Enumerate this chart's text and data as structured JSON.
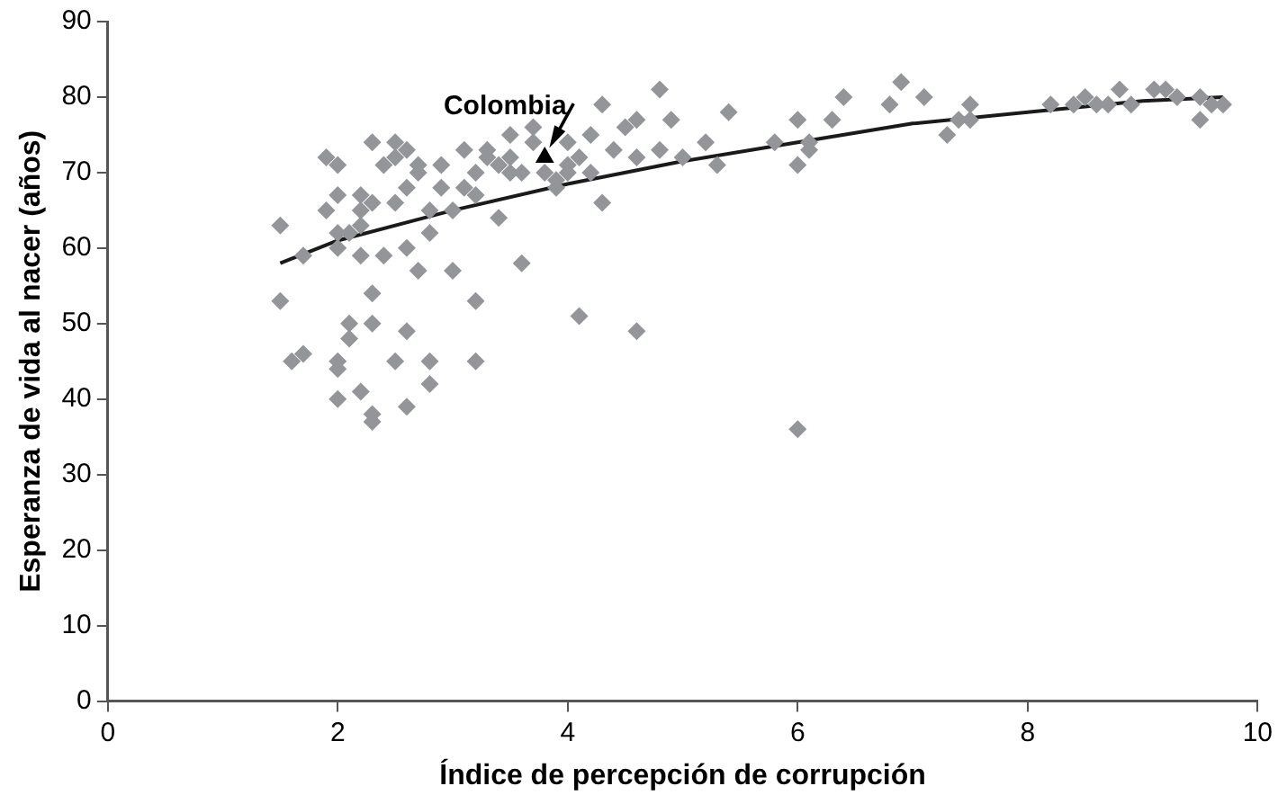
{
  "chart_data": {
    "type": "scatter",
    "xlabel": "Índice de percepción de corrupción",
    "ylabel": "Esperanza de vida al nacer (años)",
    "xlim": [
      0,
      10
    ],
    "xticks": [
      0,
      2,
      4,
      6,
      8,
      10
    ],
    "ylim": [
      0,
      90
    ],
    "yticks": [
      0,
      10,
      20,
      30,
      40,
      50,
      60,
      70,
      80,
      90
    ],
    "grid": false,
    "legend": false,
    "annotations": [
      {
        "text": "Colombia",
        "x": 3.8,
        "y": 72
      }
    ],
    "series": [
      {
        "marker": "diamond",
        "color": "#939598",
        "x": [
          1.5,
          1.5,
          1.6,
          1.7,
          1.7,
          1.9,
          1.9,
          2.0,
          2.0,
          2.0,
          2.0,
          2.0,
          2.0,
          2.0,
          2.1,
          2.1,
          2.1,
          2.2,
          2.2,
          2.2,
          2.2,
          2.2,
          2.3,
          2.3,
          2.3,
          2.3,
          2.3,
          2.3,
          2.4,
          2.4,
          2.5,
          2.5,
          2.5,
          2.5,
          2.6,
          2.6,
          2.6,
          2.6,
          2.6,
          2.7,
          2.7,
          2.7,
          2.8,
          2.8,
          2.8,
          2.8,
          2.9,
          2.9,
          3.0,
          3.0,
          3.1,
          3.1,
          3.2,
          3.2,
          3.2,
          3.2,
          3.3,
          3.3,
          3.4,
          3.4,
          3.5,
          3.5,
          3.5,
          3.6,
          3.6,
          3.7,
          3.7,
          3.8,
          3.9,
          3.9,
          4.0,
          4.0,
          4.0,
          4.1,
          4.1,
          4.2,
          4.2,
          4.3,
          4.3,
          4.4,
          4.5,
          4.6,
          4.6,
          4.6,
          4.8,
          4.8,
          4.9,
          5.0,
          5.2,
          5.3,
          5.4,
          5.8,
          6.0,
          6.0,
          6.0,
          6.1,
          6.1,
          6.3,
          6.4,
          6.8,
          6.9,
          7.1,
          7.3,
          7.4,
          7.5,
          7.5,
          8.2,
          8.4,
          8.5,
          8.6,
          8.7,
          8.8,
          8.9,
          9.1,
          9.2,
          9.3,
          9.5,
          9.5,
          9.6,
          9.7
        ],
        "values": [
          63,
          53,
          45,
          46,
          59,
          72,
          65,
          71,
          67,
          62,
          60,
          45,
          44,
          40,
          62,
          50,
          48,
          67,
          65,
          63,
          59,
          41,
          74,
          66,
          54,
          50,
          38,
          37,
          71,
          59,
          74,
          72,
          66,
          45,
          73,
          68,
          60,
          49,
          39,
          71,
          70,
          57,
          65,
          62,
          45,
          42,
          71,
          68,
          65,
          57,
          73,
          68,
          70,
          67,
          53,
          45,
          73,
          72,
          71,
          64,
          75,
          72,
          70,
          70,
          58,
          74,
          76,
          70,
          68,
          69,
          74,
          71,
          70,
          72,
          51,
          75,
          70,
          79,
          66,
          73,
          76,
          77,
          72,
          49,
          81,
          73,
          77,
          72,
          74,
          71,
          78,
          74,
          77,
          71,
          36,
          74,
          73,
          77,
          80,
          79,
          82,
          80,
          75,
          77,
          79,
          77,
          79,
          79,
          80,
          79,
          79,
          81,
          79,
          81,
          81,
          80,
          80,
          77,
          79,
          79
        ]
      },
      {
        "marker": "triangle",
        "color": "#000000",
        "x": [
          3.8
        ],
        "values": [
          72
        ]
      },
      {
        "type": "line",
        "marker": "none",
        "line_style": "solid",
        "color": "#1a1a1a",
        "x": [
          1.5,
          2,
          3,
          4,
          5,
          6,
          7,
          8,
          9,
          9.7
        ],
        "values": [
          58,
          61,
          65,
          68.5,
          71.5,
          74,
          76.5,
          78,
          79.5,
          80
        ]
      }
    ]
  }
}
